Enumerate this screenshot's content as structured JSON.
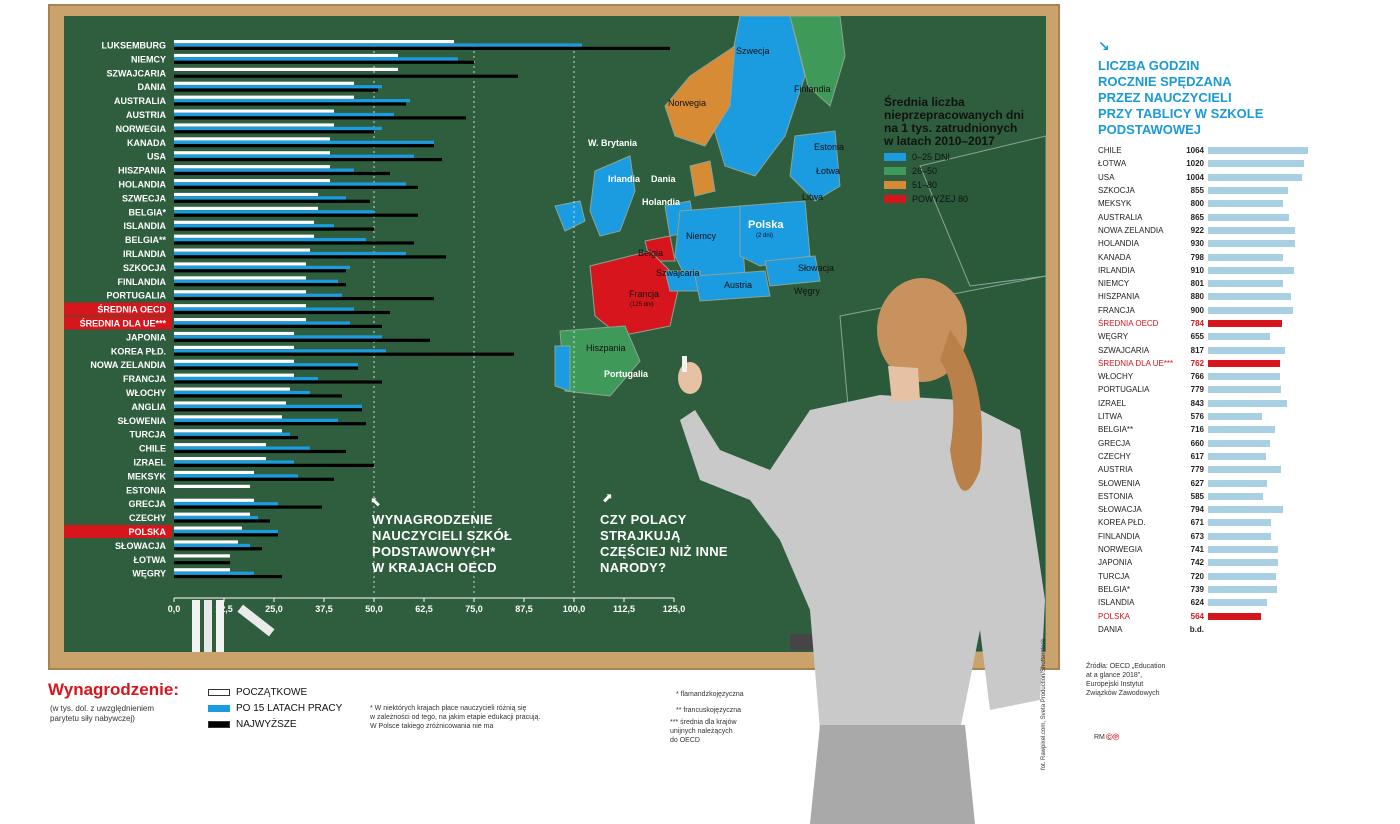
{
  "chart_data": {
    "type": "bar",
    "title": "",
    "categories": [
      "LUKSEMBURG",
      "NIEMCY",
      "SZWAJCARIA",
      "DANIA",
      "AUSTRALIA",
      "AUSTRIA",
      "NORWEGIA",
      "KANADA",
      "USA",
      "HISZPANIA",
      "HOLANDIA",
      "SZWECJA",
      "BELGIA*",
      "ISLANDIA",
      "BELGIA**",
      "IRLANDIA",
      "SZKOCJA",
      "FINLANDIA",
      "PORTUGALIA",
      "ŚREDNIA OECD",
      "ŚREDNIA DLA UE***",
      "JAPONIA",
      "KOREA PŁD.",
      "NOWA ZELANDIA",
      "FRANCJA",
      "WŁOCHY",
      "ANGLIA",
      "SŁOWENIA",
      "TURCJA",
      "CHILE",
      "IZRAEL",
      "MEKSYK",
      "ESTONIA",
      "GRECJA",
      "CZECHY",
      "POLSKA",
      "SŁOWACJA",
      "ŁOTWA",
      "WĘGRY"
    ],
    "highlighted": [
      "ŚREDNIA OECD",
      "ŚREDNIA DLA UE***",
      "POLSKA"
    ],
    "series": [
      {
        "name": "POCZĄTKOWE",
        "values": [
          70,
          56,
          56,
          45,
          45,
          40,
          40,
          39,
          39,
          39,
          39,
          36,
          36,
          35,
          35,
          34,
          33,
          33,
          33,
          33,
          33,
          30,
          30,
          30,
          30,
          29,
          28,
          27,
          27,
          23,
          23,
          20,
          19,
          20,
          19,
          17,
          16,
          14,
          14
        ]
      },
      {
        "name": "PO 15 LATACH PRACY",
        "values": [
          102,
          71,
          0,
          52,
          59,
          55,
          52,
          65,
          60,
          45,
          58,
          43,
          50,
          40,
          48,
          58,
          44,
          41,
          42,
          45,
          44,
          52,
          53,
          46,
          36,
          34,
          47,
          41,
          29,
          34,
          30,
          31,
          0,
          26,
          21,
          26,
          19,
          0,
          20
        ]
      },
      {
        "name": "NAJWYŻSZE",
        "values": [
          124,
          75,
          86,
          51,
          58,
          73,
          50,
          65,
          67,
          54,
          61,
          49,
          61,
          50,
          60,
          68,
          43,
          43,
          65,
          54,
          52,
          64,
          85,
          46,
          52,
          42,
          47,
          48,
          31,
          43,
          50,
          40,
          0,
          37,
          24,
          26,
          22,
          14,
          27
        ]
      }
    ],
    "xlim": [
      0,
      125
    ],
    "ticks": [
      "0,0",
      "12,5",
      "25,0",
      "37,5",
      "50,0",
      "62,5",
      "75,0",
      "87,5",
      "100,0",
      "112,5",
      "125,0"
    ],
    "grid_lines_at": [
      50,
      75,
      100
    ],
    "annotations": [
      "WYNAGRODZENIE\nNAUCZYCIELI SZKÓŁ\nPODSTAWOWYCH*\nW KRAJACH OECD",
      "CZY POLACY\nSTRAJKUJĄ\nCZĘŚCIEJ NIŻ INNE\nNARODY?"
    ]
  },
  "colors": {
    "white": "#ffffff",
    "blue": "#1b9be0",
    "black": "#000000",
    "red": "#d6161c",
    "board": "#2f5e3f",
    "green": "#3f9a5a",
    "orange": "#d88b35",
    "lightbar": "#a9cfe3"
  },
  "legend": {
    "title": "Wynagrodzenie:",
    "subtitle": "(w tys. dol. z uwzględnieniem\nparytetu siły nabywczej)",
    "items": [
      "POCZĄTKOWE",
      "PO 15 LATACH PRACY",
      "NAJWYŻSZE"
    ]
  },
  "notes": {
    "n1": "* W niektórych krajach płace nauczycieli różnią się\nw zależności od tego, na jakim etapie edukacji pracują.\nW Polsce takiego zróżnicowania nie ma",
    "n2": "* flamandzkojęzyczna",
    "n3": "** francuskojęzyczna",
    "n4": "*** średnia dla krajów\nunijnych należących\ndo OECD",
    "credit": "fot. Rawpixel.com, Sveta Production/Shutterstock"
  },
  "map": {
    "title": "Średnia liczba\nnieprzepracowanych dni\nna 1 tys. zatrudnionych\nw latach 2010–2017",
    "legend": [
      {
        "label": "0–25 DNI",
        "color": "#1b9be0"
      },
      {
        "label": "26–50",
        "color": "#3f9a5a"
      },
      {
        "label": "51–80",
        "color": "#d88b35"
      },
      {
        "label": "POWYŻEJ 80",
        "color": "#d6161c"
      }
    ],
    "labels": [
      "Szwecja",
      "Finlandia",
      "Norwegia",
      "Estonia",
      "Łotwa",
      "Litwa",
      "W. Brytania",
      "Irlandia",
      "Dania",
      "Holandia",
      "Niemcy",
      "Polska",
      "(2 dni)",
      "Belgia",
      "Szwajcaria",
      "Francja",
      "(125 dni)",
      "Austria",
      "Słowacja",
      "Węgry",
      "Hiszpania",
      "Portugalia"
    ]
  },
  "right_panel": {
    "title": "LICZBA GODZIN\nROCZNIE SPĘDZANA\nPRZEZ NAUCZYCIELI\nPRZY TABLICY W SZKOLE\nPODSTAWOWEJ",
    "arrow": "↘",
    "rows": [
      {
        "name": "CHILE",
        "value": "1064",
        "num": 1064
      },
      {
        "name": "ŁOTWA",
        "value": "1020",
        "num": 1020
      },
      {
        "name": "USA",
        "value": "1004",
        "num": 1004
      },
      {
        "name": "SZKOCJA",
        "value": "855",
        "num": 855
      },
      {
        "name": "MEKSYK",
        "value": "800",
        "num": 800
      },
      {
        "name": "AUSTRALIA",
        "value": "865",
        "num": 865
      },
      {
        "name": "NOWA ZELANDIA",
        "value": "922",
        "num": 922
      },
      {
        "name": "HOLANDIA",
        "value": "930",
        "num": 930
      },
      {
        "name": "KANADA",
        "value": "798",
        "num": 798
      },
      {
        "name": "IRLANDIA",
        "value": "910",
        "num": 910
      },
      {
        "name": "NIEMCY",
        "value": "801",
        "num": 801
      },
      {
        "name": "HISZPANIA",
        "value": "880",
        "num": 880
      },
      {
        "name": "FRANCJA",
        "value": "900",
        "num": 900
      },
      {
        "name": "ŚREDNIA OECD",
        "value": "784",
        "num": 784,
        "hl": true
      },
      {
        "name": "WĘGRY",
        "value": "655",
        "num": 655
      },
      {
        "name": "SZWAJCARIA",
        "value": "817",
        "num": 817
      },
      {
        "name": "ŚREDNIA DLA UE***",
        "value": "762",
        "num": 762,
        "hl": true
      },
      {
        "name": "WŁOCHY",
        "value": "766",
        "num": 766
      },
      {
        "name": "PORTUGALIA",
        "value": "779",
        "num": 779
      },
      {
        "name": "IZRAEL",
        "value": "843",
        "num": 843
      },
      {
        "name": "LITWA",
        "value": "576",
        "num": 576
      },
      {
        "name": "BELGIA**",
        "value": "716",
        "num": 716
      },
      {
        "name": "GRECJA",
        "value": "660",
        "num": 660
      },
      {
        "name": "CZECHY",
        "value": "617",
        "num": 617
      },
      {
        "name": "AUSTRIA",
        "value": "779",
        "num": 779
      },
      {
        "name": "SŁOWENIA",
        "value": "627",
        "num": 627
      },
      {
        "name": "ESTONIA",
        "value": "585",
        "num": 585
      },
      {
        "name": "SŁOWACJA",
        "value": "794",
        "num": 794
      },
      {
        "name": "KOREA PŁD.",
        "value": "671",
        "num": 671
      },
      {
        "name": "FINLANDIA",
        "value": "673",
        "num": 673
      },
      {
        "name": "NORWEGIA",
        "value": "741",
        "num": 741
      },
      {
        "name": "JAPONIA",
        "value": "742",
        "num": 742
      },
      {
        "name": "TURCJA",
        "value": "720",
        "num": 720
      },
      {
        "name": "BELGIA*",
        "value": "739",
        "num": 739
      },
      {
        "name": "ISLANDIA",
        "value": "624",
        "num": 624
      },
      {
        "name": "POLSKA",
        "value": "564",
        "num": 564,
        "hl": true
      },
      {
        "name": "DANIA",
        "value": "b.d.",
        "num": 0
      }
    ],
    "source": "Źródła: OECD „Education\nat a glance 2018”,\nEuropejski Instytut\nZwiązków Zawodowych",
    "logo": "RM"
  }
}
